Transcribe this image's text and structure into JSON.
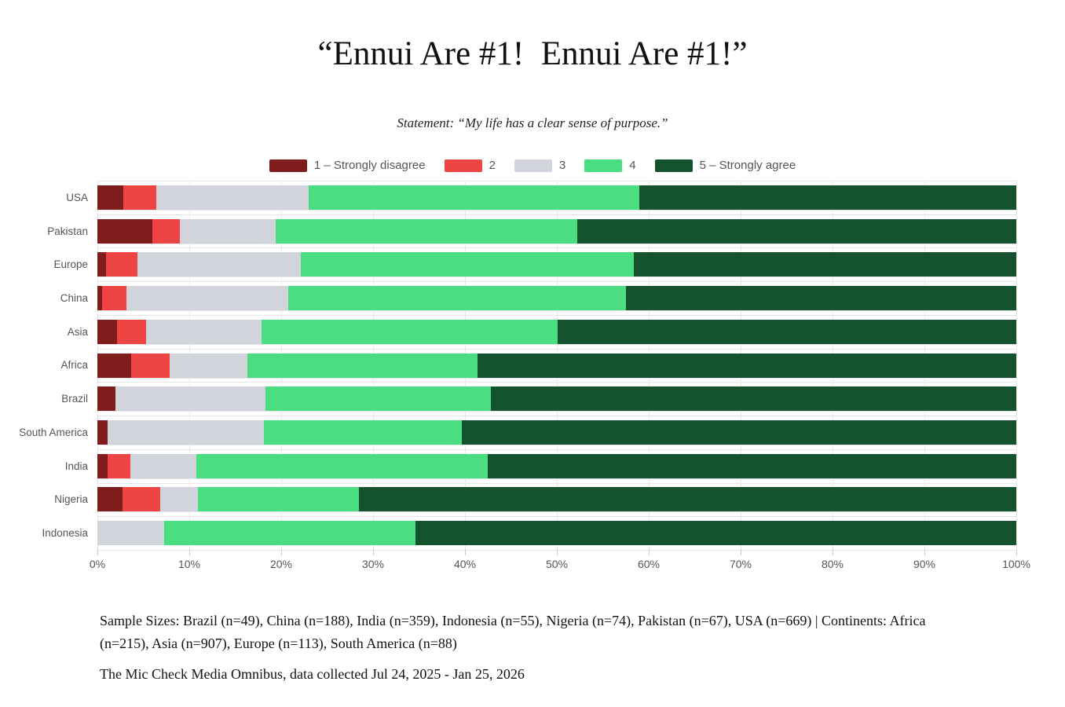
{
  "title": "“Ennui Are #1!  Ennui Are #1!”",
  "subtitle": "Statement: “My life has a clear sense of purpose.”",
  "legend": [
    {
      "label": "1 – Strongly disagree",
      "color": "#7F1D1D"
    },
    {
      "label": "2",
      "color": "#EF4444"
    },
    {
      "label": "3",
      "color": "#D1D5DB"
    },
    {
      "label": "4",
      "color": "#4ADE80"
    },
    {
      "label": "5 – Strongly agree",
      "color": "#14532D"
    }
  ],
  "chart_data": {
    "type": "bar",
    "orientation": "horizontal",
    "stacked": true,
    "unit": "percent",
    "grid": true,
    "legend_position": "top",
    "xlim": [
      0,
      100
    ],
    "x_ticks": [
      "0%",
      "10%",
      "20%",
      "30%",
      "40%",
      "50%",
      "60%",
      "70%",
      "80%",
      "90%",
      "100%"
    ],
    "categories": [
      "USA",
      "Pakistan",
      "Europe",
      "China",
      "Asia",
      "Africa",
      "Brazil",
      "South America",
      "India",
      "Nigeria",
      "Indonesia"
    ],
    "series": [
      {
        "name": "1 – Strongly disagree",
        "color": "#7F1D1D",
        "values": [
          2.8,
          6.0,
          0.9,
          0.5,
          2.1,
          3.7,
          2.0,
          1.1,
          1.1,
          2.7,
          0
        ]
      },
      {
        "name": "2",
        "color": "#EF4444",
        "values": [
          3.6,
          3.0,
          3.5,
          2.7,
          3.2,
          4.2,
          0,
          0,
          2.5,
          4.1,
          0
        ]
      },
      {
        "name": "3",
        "color": "#D1D5DB",
        "values": [
          16.6,
          10.4,
          17.7,
          17.6,
          12.6,
          8.4,
          16.3,
          17.0,
          7.2,
          4.1,
          7.3
        ]
      },
      {
        "name": "4",
        "color": "#4ADE80",
        "values": [
          36.0,
          32.8,
          36.3,
          36.7,
          32.2,
          25.1,
          24.5,
          21.6,
          31.7,
          17.6,
          27.3
        ]
      },
      {
        "name": "5 – Strongly agree",
        "color": "#14532D",
        "values": [
          41.0,
          47.8,
          41.6,
          42.5,
          49.9,
          58.6,
          57.2,
          60.3,
          57.5,
          71.5,
          65.4
        ]
      }
    ]
  },
  "footer": {
    "sample_sizes": "Sample Sizes: Brazil (n=49), China (n=188), India (n=359), Indonesia (n=55), Nigeria (n=74), Pakistan (n=67), USA (n=669) | Continents: Africa (n=215), Asia (n=907), Europe (n=113), South America (n=88)",
    "source": "The Mic Check Media Omnibus, data collected Jul 24, 2025 - Jan 25, 2026"
  }
}
